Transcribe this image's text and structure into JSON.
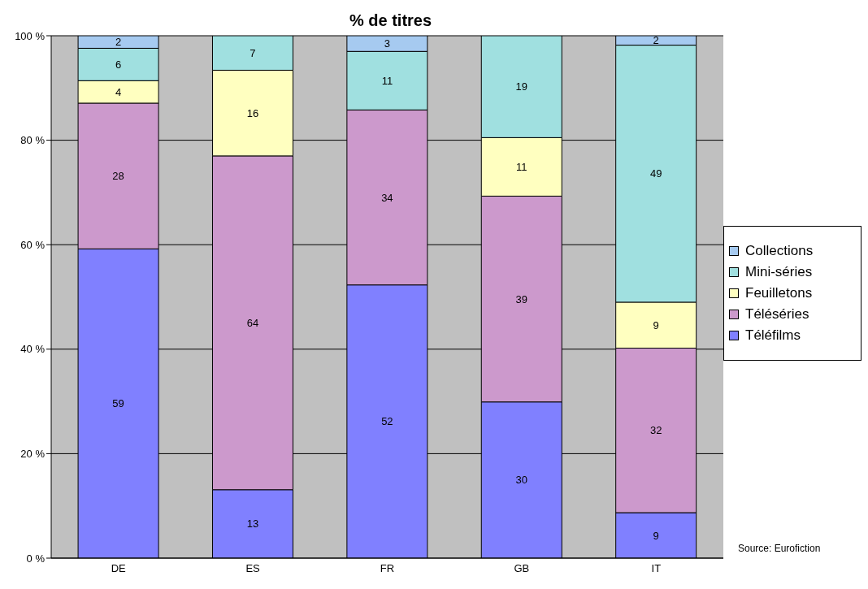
{
  "chart_data": {
    "type": "bar",
    "title": "% de titres",
    "stacked": true,
    "categories": [
      "DE",
      "ES",
      "FR",
      "GB",
      "IT"
    ],
    "series": [
      {
        "name": "Téléfilms",
        "color": "#8080ff",
        "values": [
          59.2,
          13.1,
          52.3,
          29.9,
          8.7
        ],
        "value_labels": [
          "59",
          "13",
          "52",
          "30",
          "9"
        ]
      },
      {
        "name": "Téléséries",
        "color": "#cc99cc",
        "values": [
          27.9,
          63.9,
          33.5,
          39.4,
          31.5
        ],
        "value_labels": [
          "28",
          "64",
          "34",
          "39",
          "32"
        ]
      },
      {
        "name": "Feuilletons",
        "color": "#ffffc0",
        "values": [
          4.3,
          16.4,
          null,
          11.2,
          8.8
        ],
        "value_labels": [
          "4",
          "16",
          null,
          "11",
          "9"
        ]
      },
      {
        "name": "Mini-séries",
        "color": "#a0e0e0",
        "values": [
          6.2,
          6.6,
          11.2,
          19.5,
          49.2
        ],
        "value_labels": [
          "6",
          "7",
          "11",
          "19",
          "49"
        ]
      },
      {
        "name": "Collections",
        "color": "#a6caf0",
        "values": [
          2.4,
          null,
          3.0,
          null,
          1.8
        ],
        "value_labels": [
          "2",
          null,
          "3",
          null,
          "2"
        ]
      }
    ],
    "ylim": [
      0,
      100
    ],
    "yticks": [
      {
        "value": 0,
        "label": "0 %"
      },
      {
        "value": 20,
        "label": "20 %"
      },
      {
        "value": 40,
        "label": "40 %"
      },
      {
        "value": 60,
        "label": "60 %"
      },
      {
        "value": 80,
        "label": "80 %"
      },
      {
        "value": 100,
        "label": "100 %"
      }
    ],
    "grid": "y",
    "legend": "right",
    "annotations": [
      "Source: Eurofiction"
    ]
  }
}
